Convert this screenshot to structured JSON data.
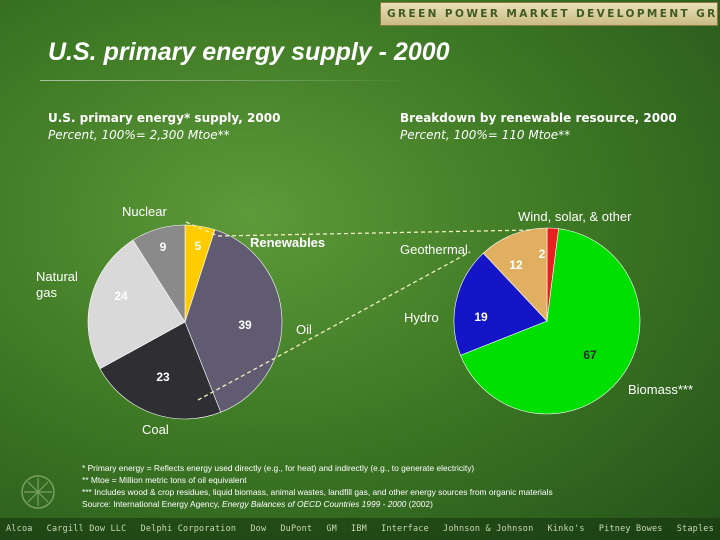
{
  "header": {
    "banner": "GREEN POWER MARKET DEVELOPMENT GROUP"
  },
  "title": "U.S. primary energy supply - 2000",
  "left_panel": {
    "heading": "U.S. primary energy* supply, 2000",
    "subheading": "Percent, 100%= 2,300 Mtoe**"
  },
  "right_panel": {
    "heading": "Breakdown by renewable resource, 2000",
    "subheading": "Percent, 100%= 110 Mtoe**"
  },
  "chart_data": [
    {
      "type": "pie",
      "title": "U.S. primary energy* supply, 2000",
      "subtitle": "Percent, 100%= 2,300 Mtoe**",
      "slices": [
        {
          "label": "Renewables",
          "value": 5,
          "color": "#ffcc00"
        },
        {
          "label": "Oil",
          "value": 39,
          "color": "#615b72"
        },
        {
          "label": "Coal",
          "value": 23,
          "color": "#2e2e33"
        },
        {
          "label": "Natural gas",
          "value": 24,
          "color": "#d9d9d9"
        },
        {
          "label": "Nuclear",
          "value": 9,
          "color": "#8a8a8a"
        }
      ]
    },
    {
      "type": "pie",
      "title": "Breakdown by renewable resource, 2000",
      "subtitle": "Percent, 100%= 110 Mtoe**",
      "slices": [
        {
          "label": "Wind, solar, & other",
          "value": 2,
          "color": "#e82020"
        },
        {
          "label": "Biomass***",
          "value": 67,
          "color": "#00e000"
        },
        {
          "label": "Hydro",
          "value": 19,
          "color": "#1515c8"
        },
        {
          "label": "Geothermal",
          "value": 12,
          "color": "#e0b060"
        }
      ]
    }
  ],
  "footnotes": {
    "f1": "*   Primary energy = Reflects energy used directly (e.g., for heat) and indirectly (e.g., to generate electricity)",
    "f2": "**  Mtoe = Million metric tons of oil equivalent",
    "f3": "*** Includes wood & crop residues, liquid biomass, animal wastes, landfill gas, and other energy sources from organic materials",
    "source_prefix": "Source:  International Energy Agency, ",
    "source_title": "Energy Balances of OECD Countries 1999 - 2000",
    "source_suffix": " (2002)"
  },
  "partners": [
    "Alcoa",
    "Cargill Dow LLC",
    "Delphi Corporation",
    "Dow",
    "DuPont",
    "GM",
    "IBM",
    "Interface",
    "Johnson & Johnson",
    "Kinko's",
    "Pitney Bowes",
    "Staples"
  ]
}
